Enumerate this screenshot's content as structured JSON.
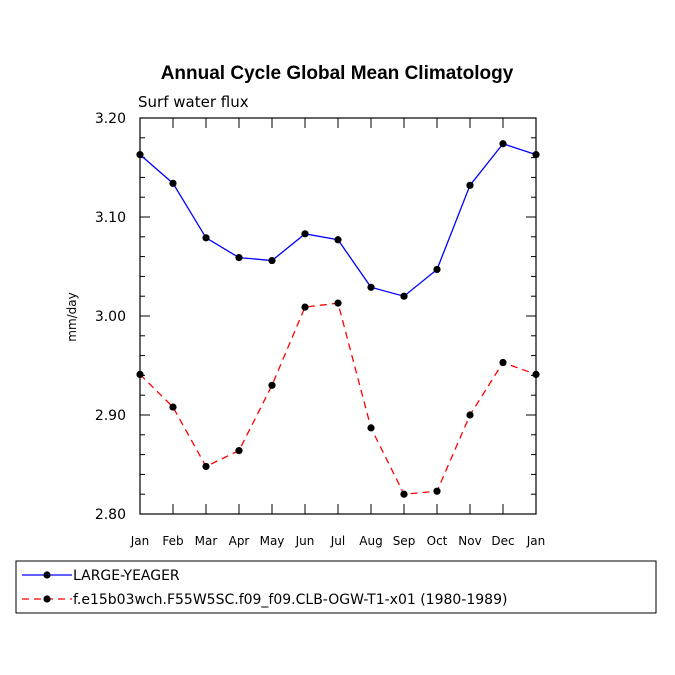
{
  "chart_data": {
    "type": "line",
    "title": "Annual Cycle Global Mean Climatology",
    "subtitle": "Surf water flux",
    "ylabel": "mm/day",
    "xlabel": "",
    "ylim": [
      2.8,
      3.2
    ],
    "yticks": [
      "2.80",
      "2.90",
      "3.00",
      "3.10",
      "3.20"
    ],
    "ytick_values": [
      2.8,
      2.9,
      3.0,
      3.1,
      3.2
    ],
    "categories": [
      "Jan",
      "Feb",
      "Mar",
      "Apr",
      "May",
      "Jun",
      "Jul",
      "Aug",
      "Sep",
      "Oct",
      "Nov",
      "Dec",
      "Jan"
    ],
    "series": [
      {
        "name": "LARGE-YEAGER",
        "color": "#0000ff",
        "dash": "solid",
        "values": [
          3.163,
          3.134,
          3.079,
          3.059,
          3.056,
          3.083,
          3.077,
          3.029,
          3.02,
          3.047,
          3.132,
          3.174,
          3.163
        ]
      },
      {
        "name": "f.e15b03wch.F55W5SC.f09_f09.CLB-OGW-T1-x01 (1980-1989)",
        "color": "#ff0000",
        "dash": "dashed",
        "values": [
          2.941,
          2.908,
          2.848,
          2.864,
          2.93,
          3.009,
          3.013,
          2.887,
          2.82,
          2.823,
          2.9,
          2.953,
          2.941
        ]
      }
    ]
  }
}
